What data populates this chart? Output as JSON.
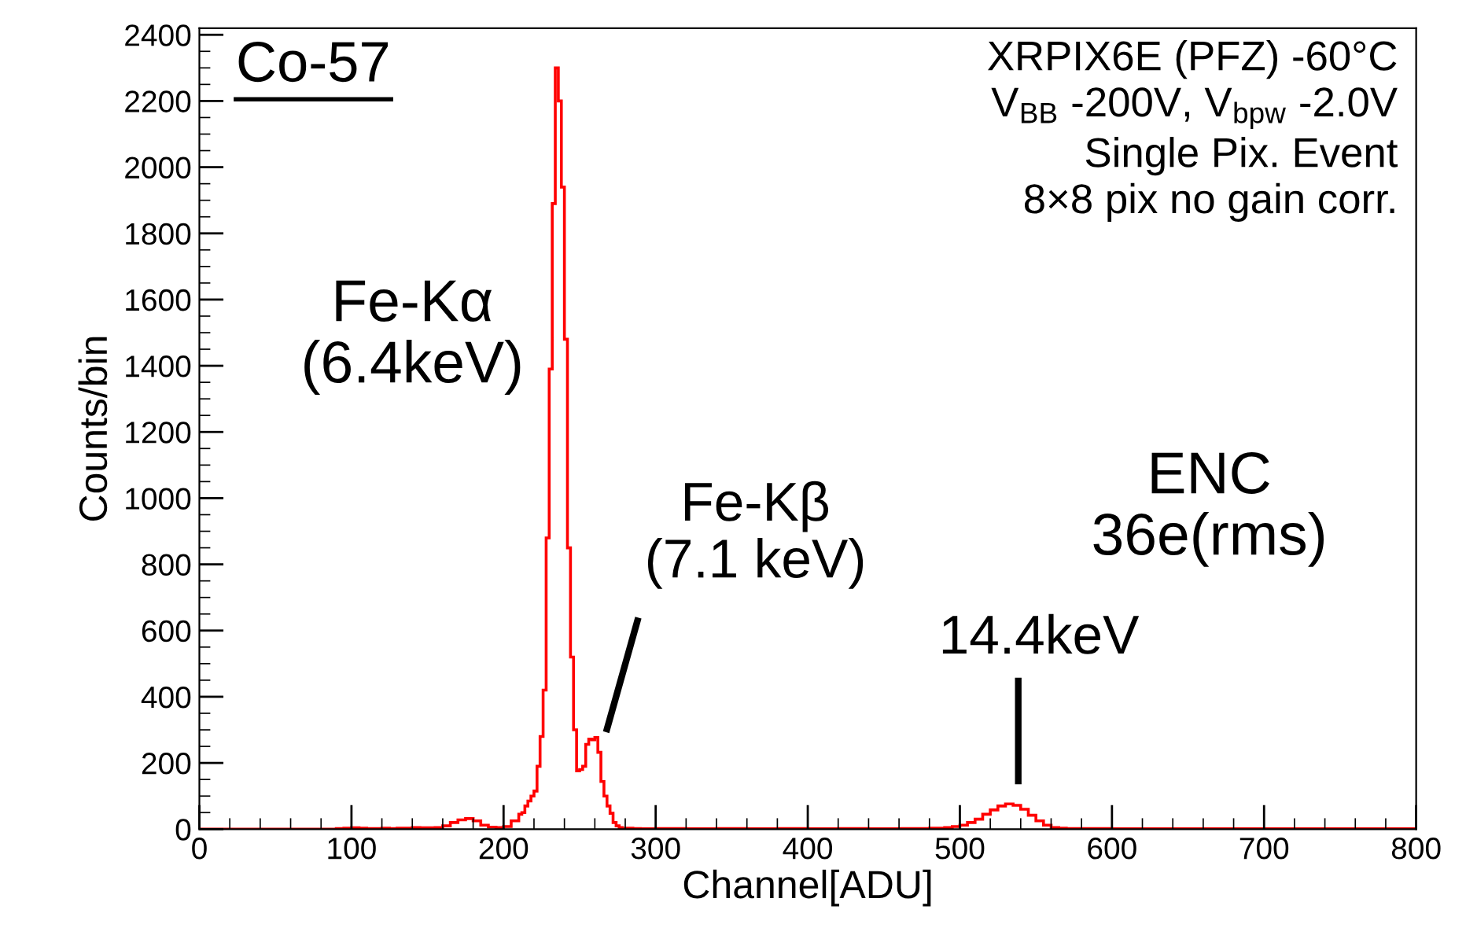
{
  "chart_data": {
    "type": "histogram",
    "xlabel": "Channel[ADU]",
    "ylabel": "Counts/bin",
    "bins": [
      0,
      90,
      95,
      100,
      105,
      110,
      115,
      120,
      125,
      130,
      135,
      140,
      145,
      150,
      155,
      160,
      165,
      170,
      175,
      180,
      185,
      190,
      195,
      200,
      205,
      210,
      212,
      214,
      216,
      218,
      220,
      222,
      224,
      226,
      228,
      230,
      232,
      234,
      236,
      238,
      240,
      242,
      244,
      246,
      248,
      250,
      252,
      254,
      256,
      258,
      260,
      262,
      264,
      266,
      268,
      270,
      272,
      274,
      276,
      278,
      280,
      285,
      290,
      300,
      320,
      340,
      360,
      380,
      400,
      420,
      440,
      460,
      480,
      490,
      495,
      500,
      505,
      510,
      515,
      520,
      525,
      530,
      535,
      540,
      545,
      550,
      555,
      560,
      565,
      570,
      600,
      800
    ],
    "values": [
      0,
      2,
      3,
      4,
      3,
      2,
      2,
      3,
      2,
      3,
      3,
      5,
      4,
      4,
      5,
      10,
      20,
      28,
      32,
      25,
      12,
      6,
      5,
      8,
      25,
      45,
      50,
      70,
      85,
      100,
      115,
      190,
      280,
      420,
      880,
      1390,
      1890,
      2300,
      2200,
      1940,
      1480,
      850,
      520,
      300,
      176,
      180,
      190,
      256,
      272,
      270,
      277,
      232,
      144,
      100,
      70,
      48,
      20,
      10,
      5,
      0,
      3,
      2,
      1,
      2,
      1,
      2,
      1,
      2,
      1,
      2,
      1,
      2,
      3,
      5,
      8,
      12,
      20,
      30,
      45,
      58,
      70,
      76,
      72,
      60,
      42,
      25,
      12,
      5,
      3,
      2,
      1
    ],
    "color": "#ff0000",
    "xlim": [
      0,
      800
    ],
    "xticks": [
      0,
      100,
      200,
      300,
      400,
      500,
      600,
      700,
      800
    ],
    "ylim": [
      0,
      2420
    ],
    "yticks": [
      0,
      200,
      400,
      600,
      800,
      1000,
      1200,
      1400,
      1600,
      1800,
      2000,
      2200,
      2400
    ],
    "grid": false,
    "annotations": [
      "Co-57",
      "Fe-Kα\n(6.4keV)",
      "XRPIX6E (PFZ) -60°C\nV$_{BB}$ -200V, V$_{bpw}$ -2.0V\nSingle Pix. Event\n8×8 pix no gain corr.",
      "ENC\n36e(rms)",
      "Fe-Kβ\n(7.1 keV)",
      "14.4keV"
    ]
  }
}
